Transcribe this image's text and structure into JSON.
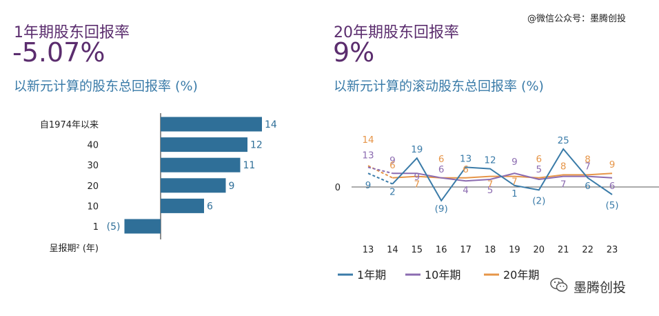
{
  "watermark_top": "@微信公众号：墨腾创投",
  "watermark_bottom": "墨腾创投",
  "left": {
    "title": "1年期股东回报率",
    "value": "-5.07%",
    "subtitle": "以新元计算的股东总回报率 (%)"
  },
  "right": {
    "title": "20年期股东回报率",
    "value": "9%",
    "subtitle": "以新元计算的滚动股东总回报率 (%)"
  },
  "colors": {
    "bar": "#2f6f98",
    "one_year": "#3a7ba8",
    "ten_year": "#8b6bb0",
    "twenty_year": "#e69548",
    "title": "#5b2d6e"
  },
  "chart_data": [
    {
      "type": "bar",
      "orientation": "horizontal",
      "categories": [
        "自1974年以来",
        "40",
        "30",
        "20",
        "10",
        "1"
      ],
      "values": [
        14,
        12,
        11,
        9,
        6,
        -5
      ],
      "value_labels": [
        "14",
        "12",
        "11",
        "9",
        "6",
        "(5)"
      ],
      "ylabel": "呈报期² (年)"
    },
    {
      "type": "line",
      "x": [
        "13",
        "14",
        "15",
        "16",
        "17",
        "18",
        "19",
        "20",
        "21",
        "22",
        "23"
      ],
      "zero_label": "0",
      "first_segment_dashed": true,
      "series": [
        {
          "name": "1年期",
          "values": [
            9,
            2,
            19,
            -9,
            13,
            12,
            1,
            -2,
            25,
            6,
            -5
          ],
          "labels": [
            "9",
            "2",
            "19",
            "(9)",
            "13",
            "12",
            "1",
            "(2)",
            "25",
            "6",
            "(5)"
          ]
        },
        {
          "name": "10年期",
          "values": [
            13,
            9,
            9,
            6,
            4,
            5,
            9,
            5,
            7,
            7,
            6
          ],
          "labels": [
            "13",
            "9",
            "9",
            "6",
            "4",
            "5",
            "9",
            "5",
            "7",
            "7",
            "6"
          ]
        },
        {
          "name": "20年期",
          "values": [
            14,
            6,
            7,
            6,
            6,
            7,
            7,
            6,
            8,
            8,
            9
          ],
          "labels": [
            "14",
            "6",
            "7",
            "6",
            "6",
            "7",
            "7",
            "6",
            "8",
            "8",
            "9"
          ]
        }
      ]
    }
  ]
}
